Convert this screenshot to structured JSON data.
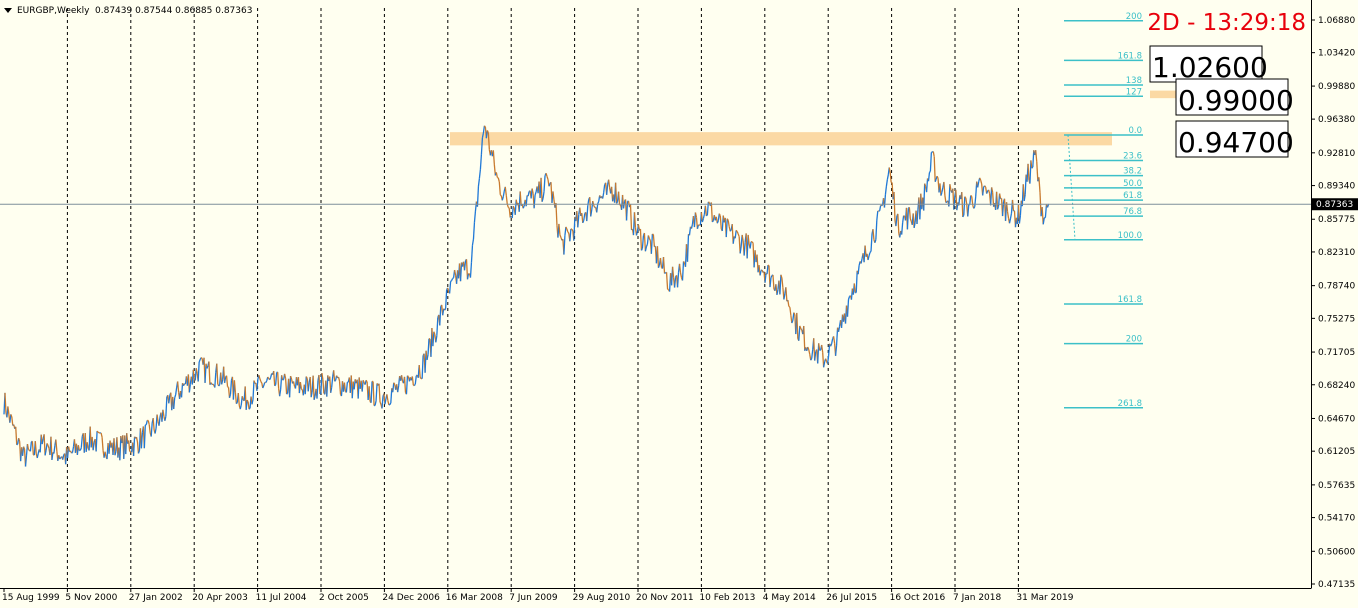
{
  "header": {
    "symbol": "EURGBP,Weekly",
    "ohlc": "0.87439 0.87544 0.86885 0.87363"
  },
  "timer": "2D - 13:29:18",
  "colors": {
    "background": "#fffff0",
    "price_line_up": "#1f78d6",
    "price_line_down": "#c87a2e",
    "fib": "#3cc0c8",
    "zone": "#fbd9a4",
    "timer": "#e8000b",
    "current_price_bg": "#000000"
  },
  "price_boxes": [
    "1.02600",
    "0.99000",
    "0.94700"
  ],
  "chart_data": {
    "type": "line",
    "title": "EURGBP,Weekly",
    "y_axis": {
      "min": 0.4735,
      "max": 1.0888,
      "ticks": [
        "1.06880",
        "1.03420",
        "0.99880",
        "0.96380",
        "0.92810",
        "0.89340",
        "0.85775",
        "0.82310",
        "0.78740",
        "0.75275",
        "0.71705",
        "0.68240",
        "0.64670",
        "0.61205",
        "0.57635",
        "0.54170",
        "0.50600",
        "0.47135"
      ],
      "current_price": "0.87363"
    },
    "x_axis": {
      "ticks": [
        "15 Aug 1999",
        "5 Nov 2000",
        "27 Jan 2002",
        "20 Apr 2003",
        "11 Jul 2004",
        "2 Oct 2005",
        "24 Dec 2006",
        "16 Mar 2008",
        "7 Jun 2009",
        "29 Aug 2010",
        "20 Nov 2011",
        "10 Feb 2013",
        "4 May 2014",
        "26 Jul 2015",
        "16 Oct 2016",
        "7 Jan 2018",
        "31 Mar 2019"
      ]
    },
    "grid": "vertical dashed",
    "series": [
      {
        "x": [
          "15 Aug 1999",
          "Jan 2000",
          "Jun 2000",
          "Nov 2000",
          "Apr 2001",
          "Oct 2001",
          "Mar 2002",
          "Aug 2002",
          "Jan 2003",
          "Jun 2003",
          "Nov 2003",
          "Apr 2004",
          "Sep 2004",
          "Mar 2005",
          "Aug 2005",
          "Jan 2006",
          "Jun 2006",
          "Dec 2006",
          "May 2007",
          "Oct 2007",
          "Mar 2008",
          "Jun 2008",
          "Sep 2008",
          "Dec 2008",
          "Mar 2009",
          "Jun 2009",
          "Sep 2009",
          "Dec 2009",
          "Mar 2010",
          "Jun 2010",
          "Sep 2010",
          "Dec 2010",
          "Mar 2011",
          "Jun 2011",
          "Sep 2011",
          "Dec 2011",
          "Mar 2012",
          "Jul 2012",
          "Oct 2012",
          "Jan 2013",
          "Apr 2013",
          "Jul 2013",
          "Oct 2013",
          "Jan 2014",
          "Apr 2014",
          "Jul 2014",
          "Oct 2014",
          "Jan 2015",
          "Apr 2015",
          "Jul 2015",
          "Oct 2015",
          "Jan 2016",
          "Mar 2016",
          "Jun 2016",
          "Aug 2016",
          "Oct 2016",
          "Dec 2016",
          "Feb 2017",
          "Apr 2017",
          "Jun 2017",
          "Aug 2017",
          "Oct 2017",
          "Jan 2018",
          "Apr 2018",
          "Jul 2018",
          "Oct 2018",
          "Jan 2019",
          "Apr 2019",
          "Jun 2019",
          "Aug 2019",
          "Sep 2019",
          "Oct 2019",
          "Nov 2019"
        ],
        "values": [
          0.665,
          0.605,
          0.62,
          0.605,
          0.625,
          0.615,
          0.62,
          0.64,
          0.675,
          0.7,
          0.69,
          0.665,
          0.685,
          0.68,
          0.68,
          0.685,
          0.68,
          0.67,
          0.68,
          0.705,
          0.77,
          0.8,
          0.81,
          0.96,
          0.9,
          0.87,
          0.88,
          0.88,
          0.9,
          0.83,
          0.85,
          0.87,
          0.88,
          0.89,
          0.87,
          0.84,
          0.83,
          0.79,
          0.805,
          0.86,
          0.87,
          0.85,
          0.84,
          0.83,
          0.81,
          0.795,
          0.78,
          0.74,
          0.72,
          0.71,
          0.73,
          0.78,
          0.8,
          0.84,
          0.86,
          0.91,
          0.85,
          0.86,
          0.86,
          0.88,
          0.92,
          0.89,
          0.88,
          0.87,
          0.89,
          0.88,
          0.87,
          0.86,
          0.9,
          0.925,
          0.88,
          0.86,
          0.874
        ]
      }
    ],
    "fibonacci": {
      "levels": [
        {
          "label": "200",
          "price": 1.068
        },
        {
          "label": "161.8",
          "price": 1.026
        },
        {
          "label": "138",
          "price": 1.0
        },
        {
          "label": "127",
          "price": 0.988
        },
        {
          "label": "0.0",
          "price": 0.947
        },
        {
          "label": "23.6",
          "price": 0.92
        },
        {
          "label": "38.2",
          "price": 0.904
        },
        {
          "label": "50.0",
          "price": 0.891
        },
        {
          "label": "61.8",
          "price": 0.878
        },
        {
          "label": "76.8",
          "price": 0.861
        },
        {
          "label": "100.0",
          "price": 0.836
        },
        {
          "label": "161.8",
          "price": 0.768
        },
        {
          "label": "200",
          "price": 0.726
        },
        {
          "label": "261.8",
          "price": 0.658
        }
      ]
    },
    "zones": [
      {
        "low": 0.936,
        "high": 0.95
      },
      {
        "low": 0.986,
        "high": 0.994
      }
    ]
  }
}
